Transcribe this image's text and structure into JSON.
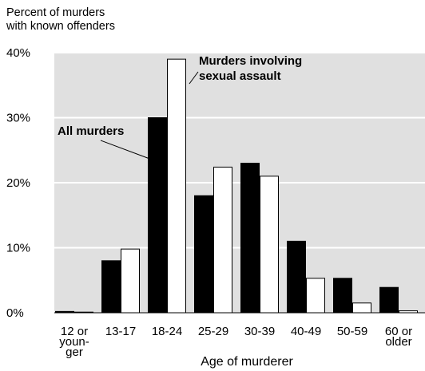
{
  "chart_data": {
    "type": "bar",
    "ylabel_lines": [
      "Percent of murders",
      "with known offenders"
    ],
    "xlabel": "Age of murderer",
    "ylim": [
      0,
      40
    ],
    "yticks": [
      "0%",
      "10%",
      "20%",
      "30%",
      "40%"
    ],
    "ytick_values": [
      0,
      10,
      20,
      30,
      40
    ],
    "grid": true,
    "categories": [
      [
        "12 or",
        "youn-",
        "ger"
      ],
      [
        "13-17"
      ],
      [
        "18-24"
      ],
      [
        "25-29"
      ],
      [
        "30-39"
      ],
      [
        "40-49"
      ],
      [
        "50-59"
      ],
      [
        "60 or",
        "older"
      ]
    ],
    "series": [
      {
        "name": "All murders",
        "values": [
          0.2,
          8.0,
          30.0,
          18.0,
          23.0,
          11.0,
          5.3,
          3.9
        ],
        "color": "#000000"
      },
      {
        "name": "Murders involving sexual assault",
        "values": [
          0.1,
          9.8,
          39.0,
          22.4,
          21.0,
          5.3,
          1.5,
          0.3
        ],
        "color": "#ffffff"
      }
    ],
    "annotations": [
      {
        "lines": [
          "All murders"
        ],
        "series": 0
      },
      {
        "lines": [
          "Murders involving",
          "sexual assault"
        ],
        "series": 1
      }
    ],
    "colors": {
      "plot_background": "#e0e0e0",
      "gridline": "#ffffff",
      "bar_outline": "#000000"
    }
  }
}
